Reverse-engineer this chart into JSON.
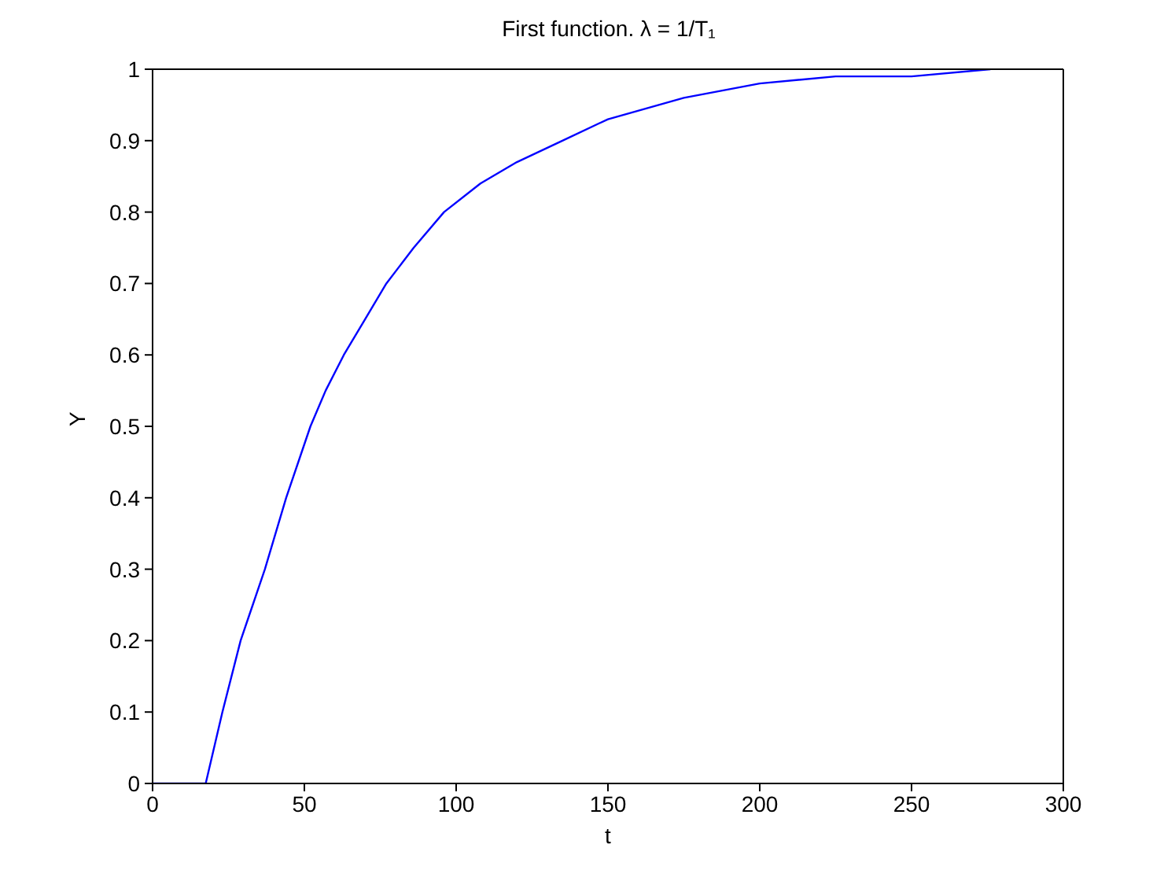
{
  "chart_data": {
    "type": "line",
    "title": "First function. λ = 1/T₁",
    "xlabel": "t",
    "ylabel": "Y",
    "x": [
      0,
      17.5,
      23,
      29,
      33,
      37,
      44,
      52,
      57,
      63,
      70,
      77,
      86,
      96,
      108,
      120,
      135,
      150,
      175,
      200,
      225,
      250,
      276
    ],
    "series": [
      {
        "color": "#0000ff",
        "values": [
          0,
          0,
          0.1,
          0.2,
          0.25,
          0.3,
          0.4,
          0.5,
          0.55,
          0.6,
          0.65,
          0.7,
          0.75,
          0.8,
          0.84,
          0.87,
          0.9,
          0.93,
          0.96,
          0.98,
          0.99,
          0.99,
          1
        ]
      }
    ],
    "xlim": [
      0,
      300
    ],
    "xticks": [
      0,
      50,
      100,
      150,
      200,
      250,
      300
    ],
    "ylim": [
      0,
      1
    ],
    "yticks": [
      0,
      0.1,
      0.2,
      0.3,
      0.4,
      0.5,
      0.6,
      0.7,
      0.8,
      0.9,
      1
    ],
    "grid": false,
    "legend": false,
    "marker": "none",
    "line_style": "solid"
  }
}
